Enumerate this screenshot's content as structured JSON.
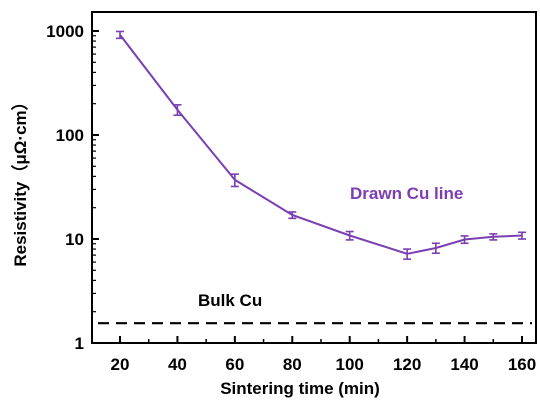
{
  "chart_data": {
    "type": "line",
    "title": "",
    "xlabel": "Sintering time (min)",
    "ylabel": "Resistivity（μΩ·cm）",
    "xlim": [
      10,
      160
    ],
    "ylim": [
      1,
      1500
    ],
    "yscale": "log",
    "x_ticks": [
      20,
      40,
      60,
      80,
      100,
      120,
      140,
      160
    ],
    "x_tick_labels": [
      "20",
      "40",
      "60",
      "80",
      "100",
      "120",
      "140",
      "160"
    ],
    "y_ticks": [
      1,
      10,
      100,
      1000
    ],
    "y_tick_labels": [
      "1",
      "10",
      "100",
      "1000"
    ],
    "grid": false,
    "series": [
      {
        "name": "Drawn Cu line",
        "color": "#7a3fb0",
        "x": [
          20,
          40,
          60,
          80,
          100,
          120,
          130,
          140,
          150,
          160
        ],
        "y": [
          920,
          175,
          37,
          17,
          10.8,
          7.2,
          8.2,
          9.9,
          10.5,
          10.8
        ],
        "error": [
          70,
          20,
          5,
          1.2,
          1.0,
          0.8,
          0.9,
          0.8,
          0.7,
          0.8
        ]
      }
    ],
    "reference_lines": [
      {
        "label": "Bulk Cu",
        "y": 1.55,
        "style": "dashed",
        "color": "#000000"
      }
    ],
    "annotations": [
      {
        "text": "Drawn Cu line",
        "color": "#7a3fb0"
      },
      {
        "text": "Bulk Cu",
        "color": "#000000"
      }
    ]
  }
}
